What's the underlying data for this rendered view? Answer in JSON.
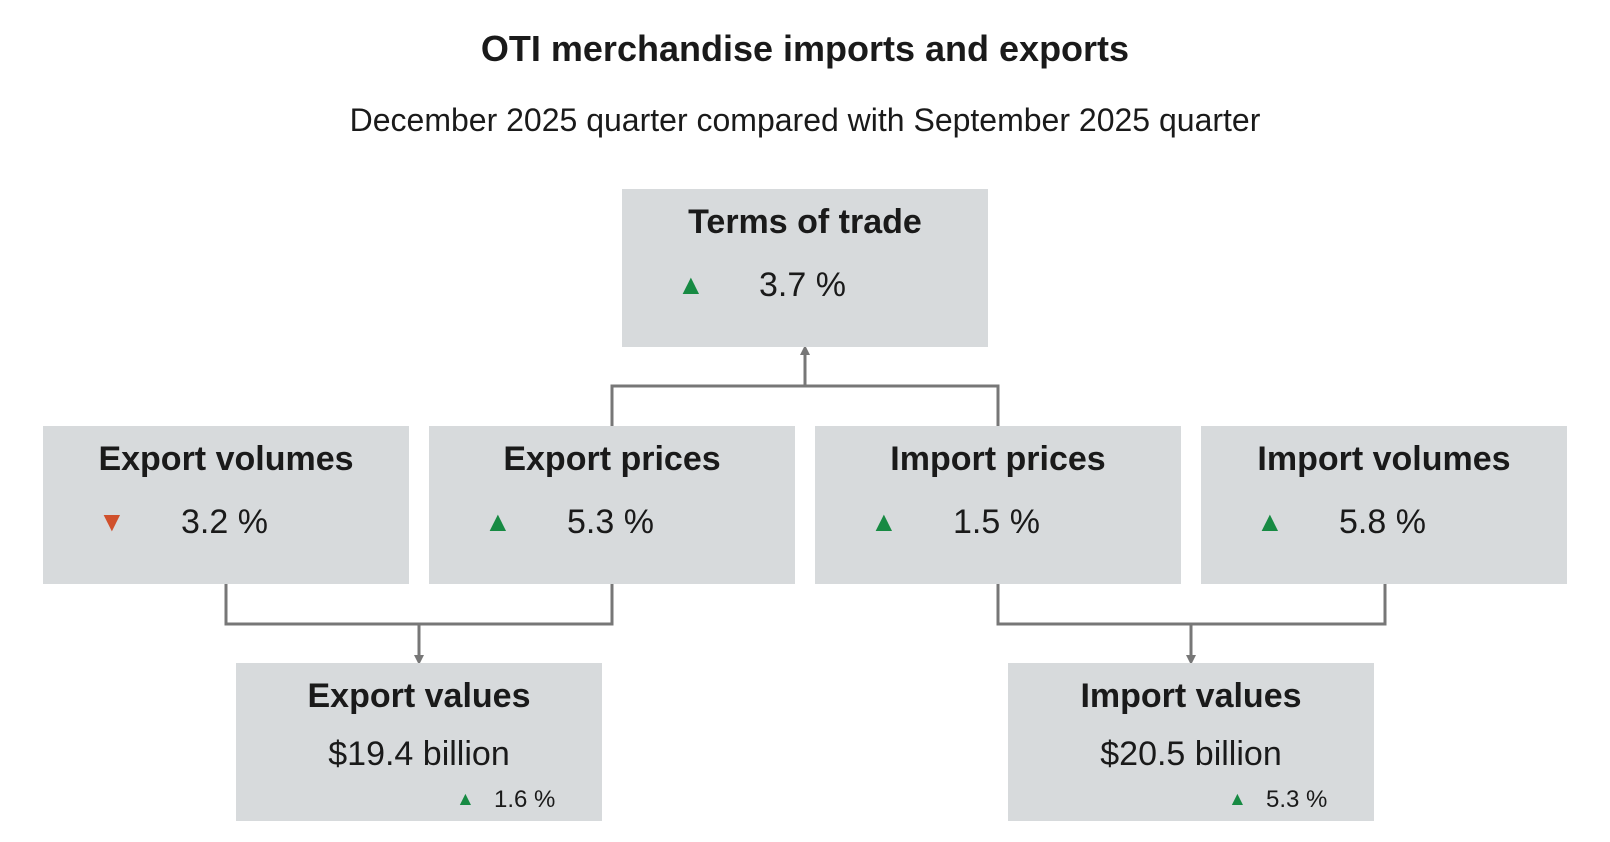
{
  "title": "OTI merchandise imports and exports",
  "subtitle": "December 2025 quarter compared with September 2025 quarter",
  "colors": {
    "box_fill": "#d7dadc",
    "up": "#178a43",
    "down": "#d0502c",
    "connector": "#777777"
  },
  "boxes": {
    "terms_of_trade": {
      "title": "Terms of trade",
      "direction": "up",
      "change": "3.7 %"
    },
    "export_volumes": {
      "title": "Export volumes",
      "direction": "down",
      "change": "3.2 %"
    },
    "export_prices": {
      "title": "Export prices",
      "direction": "up",
      "change": "5.3 %"
    },
    "import_prices": {
      "title": "Import prices",
      "direction": "up",
      "change": "1.5 %"
    },
    "import_volumes": {
      "title": "Import volumes",
      "direction": "up",
      "change": "5.8 %"
    },
    "export_values": {
      "title": "Export values",
      "value": "$19.4 billion",
      "direction": "up",
      "change": "1.6 %"
    },
    "import_values": {
      "title": "Import values",
      "value": "$20.5 billion",
      "direction": "up",
      "change": "5.3 %"
    }
  },
  "glyphs": {
    "up": "▲",
    "down": "▼"
  }
}
